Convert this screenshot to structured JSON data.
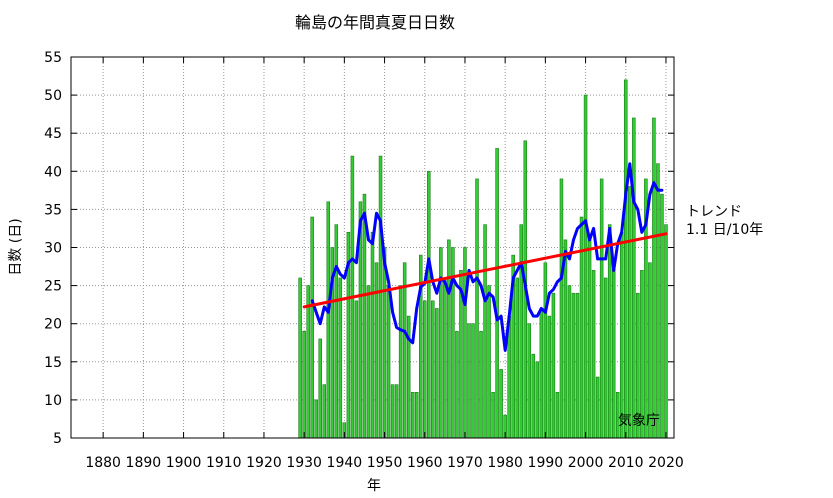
{
  "chart_data": {
    "type": "bar",
    "title": "輪島の年間真夏日日数",
    "xlabel": "年",
    "ylabel": "日数 (日)",
    "xlim": [
      1872,
      2022
    ],
    "ylim": [
      5,
      55
    ],
    "x_ticks": [
      1880,
      1890,
      1900,
      1910,
      1920,
      1930,
      1940,
      1950,
      1960,
      1970,
      1980,
      1990,
      2000,
      2010,
      2020
    ],
    "y_ticks": [
      5,
      10,
      15,
      20,
      25,
      30,
      35,
      40,
      45,
      50,
      55
    ],
    "grid": true,
    "years": [
      1929,
      1930,
      1931,
      1932,
      1933,
      1934,
      1935,
      1936,
      1937,
      1938,
      1939,
      1940,
      1941,
      1942,
      1943,
      1944,
      1945,
      1946,
      1947,
      1948,
      1949,
      1950,
      1951,
      1952,
      1953,
      1954,
      1955,
      1956,
      1957,
      1958,
      1959,
      1960,
      1961,
      1962,
      1963,
      1964,
      1965,
      1966,
      1967,
      1968,
      1969,
      1970,
      1971,
      1972,
      1973,
      1974,
      1975,
      1976,
      1977,
      1978,
      1979,
      1980,
      1981,
      1982,
      1983,
      1984,
      1985,
      1986,
      1987,
      1988,
      1989,
      1990,
      1991,
      1992,
      1993,
      1994,
      1995,
      1996,
      1997,
      1998,
      1999,
      2000,
      2001,
      2002,
      2003,
      2004,
      2005,
      2006,
      2007,
      2008,
      2009,
      2010,
      2011,
      2012,
      2013,
      2014,
      2015,
      2016,
      2017,
      2018,
      2019,
      2020
    ],
    "series": [
      {
        "type": "bar",
        "color": "#33cc33",
        "values": [
          26,
          19,
          25,
          34,
          10,
          18,
          12,
          36,
          30,
          33,
          26,
          7,
          32,
          42,
          23,
          36,
          37,
          25,
          32,
          28,
          42,
          30,
          25,
          12,
          12,
          25,
          28,
          21,
          11,
          11,
          29,
          23,
          40,
          23,
          22,
          30,
          26,
          31,
          30,
          19,
          27,
          30,
          20,
          20,
          39,
          19,
          33,
          25,
          11,
          43,
          14,
          8,
          21,
          29,
          26,
          33,
          44,
          20,
          16,
          15,
          22,
          28,
          21,
          24,
          11,
          39,
          31,
          25,
          24,
          24,
          34,
          50,
          31,
          27,
          13,
          39,
          26,
          33,
          28,
          11,
          32,
          52,
          38,
          47,
          24,
          27,
          39,
          28,
          47,
          41,
          37,
          33
        ]
      },
      {
        "type": "line",
        "color": "#0000ff",
        "x": [
          1932,
          1933,
          1934,
          1935,
          1936,
          1937,
          1938,
          1939,
          1940,
          1941,
          1942,
          1943,
          1944,
          1945,
          1946,
          1947,
          1948,
          1949,
          1950,
          1951,
          1952,
          1953,
          1954,
          1955,
          1956,
          1957,
          1958,
          1959,
          1960,
          1961,
          1962,
          1963,
          1964,
          1965,
          1966,
          1967,
          1968,
          1969,
          1970,
          1971,
          1972,
          1973,
          1974,
          1975,
          1976,
          1977,
          1978,
          1979,
          1980,
          1981,
          1982,
          1983,
          1984,
          1985,
          1986,
          1987,
          1988,
          1989,
          1990,
          1991,
          1992,
          1993,
          1994,
          1995,
          1996,
          1997,
          1998,
          1999,
          2000,
          2001,
          2002,
          2003,
          2004,
          2005,
          2006,
          2007,
          2008,
          2009,
          2010,
          2011,
          2012,
          2013,
          2014,
          2015,
          2016,
          2017,
          2018,
          2019
        ],
        "values": [
          23,
          21.5,
          20,
          22.2,
          21.5,
          26,
          27.5,
          26.5,
          26,
          28,
          28.5,
          28,
          33.5,
          34.5,
          31,
          30.5,
          34.5,
          33.5,
          28,
          25.5,
          21.5,
          19.5,
          19.2,
          19,
          18,
          17.5,
          22,
          24.8,
          25.3,
          28.5,
          25.5,
          24,
          26,
          25.5,
          24,
          26,
          25,
          24.5,
          22.5,
          27,
          25.5,
          26,
          25,
          23,
          24,
          23.5,
          20.5,
          21,
          16.5,
          21,
          26,
          27,
          28,
          25,
          22,
          21,
          21,
          22,
          21.5,
          24,
          24.5,
          25.5,
          26,
          29.5,
          28.5,
          31,
          32.5,
          33,
          33.5,
          31,
          32.5,
          28.5,
          28.5,
          28.5,
          32.5,
          27,
          30.5,
          32,
          37,
          41,
          36,
          35,
          32,
          33,
          37,
          38.5,
          37.5,
          37.5
        ]
      },
      {
        "type": "line",
        "color": "#ff0000",
        "x": [
          1930,
          2020
        ],
        "values": [
          22.2,
          31.8
        ]
      }
    ],
    "annotations": {
      "trend_line1": "トレンド",
      "trend_line2": "1.1 日/10年",
      "source": "気象庁"
    }
  }
}
